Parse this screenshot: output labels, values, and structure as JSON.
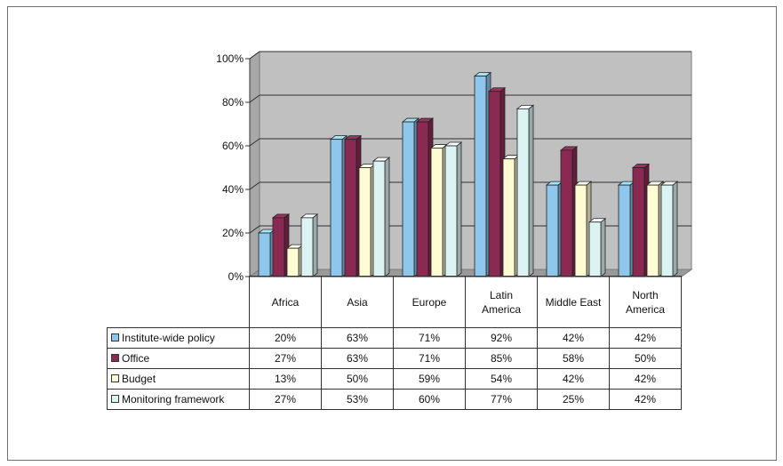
{
  "chart_data": {
    "type": "bar",
    "categories": [
      "Africa",
      "Asia",
      "Europe",
      "Latin America",
      "Middle East",
      "North America"
    ],
    "category_labels": [
      [
        "Africa"
      ],
      [
        "Asia"
      ],
      [
        "Europe"
      ],
      [
        "Latin",
        "America"
      ],
      [
        "Middle East"
      ],
      [
        "North",
        "America"
      ]
    ],
    "series": [
      {
        "name": "Institute-wide policy",
        "values": [
          20,
          63,
          71,
          92,
          42,
          42
        ],
        "labels": [
          "20%",
          "63%",
          "71%",
          "92%",
          "42%",
          "42%"
        ]
      },
      {
        "name": "Office",
        "values": [
          27,
          63,
          71,
          85,
          58,
          50
        ],
        "labels": [
          "27%",
          "63%",
          "71%",
          "85%",
          "58%",
          "50%"
        ]
      },
      {
        "name": "Budget",
        "values": [
          13,
          50,
          59,
          54,
          42,
          42
        ],
        "labels": [
          "13%",
          "50%",
          "59%",
          "54%",
          "42%",
          "42%"
        ]
      },
      {
        "name": "Monitoring framework",
        "values": [
          27,
          53,
          60,
          77,
          25,
          42
        ],
        "labels": [
          "27%",
          "53%",
          "60%",
          "77%",
          "25%",
          "42%"
        ]
      }
    ],
    "series_colors": [
      "#8ec6ec",
      "#8a2a52",
      "#fffbd2",
      "#dcf3f3"
    ],
    "y_ticks": [
      "0%",
      "20%",
      "40%",
      "60%",
      "80%",
      "100%"
    ],
    "ylim": [
      0,
      100
    ],
    "grid": true,
    "legend": "data-table-below",
    "style": "3d-clustered-column",
    "wall_color": "#c0c0c0"
  }
}
